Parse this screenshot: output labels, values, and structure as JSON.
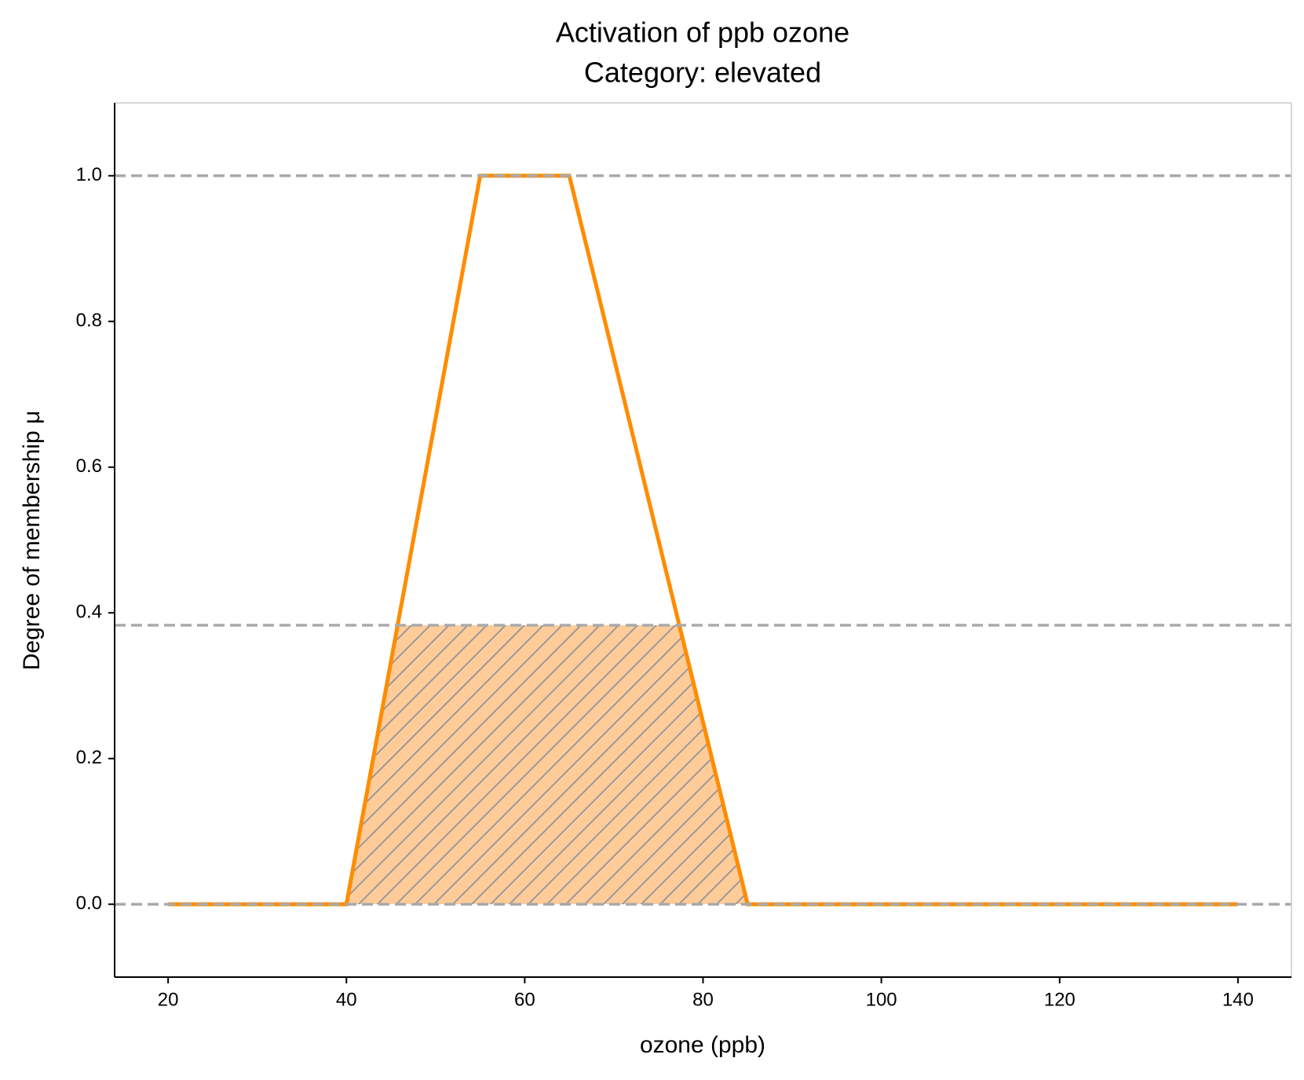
{
  "chart_data": {
    "type": "line",
    "title": "Activation of ppb ozone",
    "subtitle": "Category: elevated",
    "xlabel": "ozone (ppb)",
    "ylabel": "Degree of membership μ",
    "x": [
      20,
      40,
      55,
      65,
      85,
      140
    ],
    "series": [
      {
        "color": "#ff8c00",
        "values": [
          0,
          0,
          1,
          1,
          0,
          0
        ]
      }
    ],
    "activation": 0.383,
    "fill_color": "#ffcc99",
    "hatch_color": "#999999",
    "reference_lines": [
      0,
      1
    ],
    "xlim": [
      14,
      146
    ],
    "ylim": [
      -0.1,
      1.1
    ],
    "xticks": [
      20,
      40,
      60,
      80,
      100,
      120,
      140
    ],
    "yticks": [
      {
        "value": 0,
        "label": "0.0"
      },
      0.2,
      0.4,
      0.6,
      0.8,
      {
        "value": 1,
        "label": "1.0"
      }
    ]
  }
}
